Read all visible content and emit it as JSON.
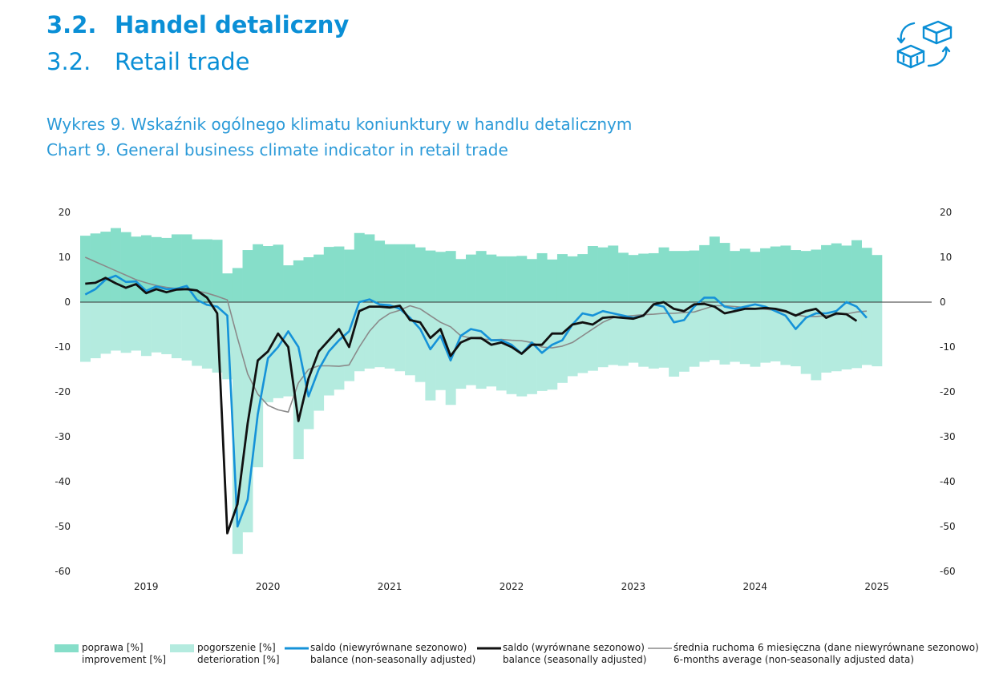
{
  "header": {
    "section_number": "3.2.",
    "title_pl": "Handel detaliczny",
    "title_en": "Retail trade",
    "icon": "boxes-exchange-icon"
  },
  "chart_title_pl": "Wykres 9. Wskaźnik ogólnego klimatu koniunktury w handlu detalicznym",
  "chart_title_en": "Chart 9. General business climate indicator in retail trade",
  "colors": {
    "improvement": "#86dec9",
    "deterioration": "#b4ebdf",
    "nsa": "#1592d8",
    "sa": "#111111",
    "avg": "#8a8a8a",
    "title": "#0a8fd6"
  },
  "legend": [
    {
      "key": "improvement",
      "pl": "poprawa [%]",
      "en": "improvement [%]"
    },
    {
      "key": "deterioration",
      "pl": "pogorszenie [%]",
      "en": "deterioration [%]"
    },
    {
      "key": "nsa",
      "pl": "saldo (niewyrównane sezonowo)",
      "en": "balance (non-seasonally adjusted)"
    },
    {
      "key": "sa",
      "pl": "saldo (wyrównane sezonowo)",
      "en": "balance (seasonally adjusted)"
    },
    {
      "key": "avg",
      "pl": "średnia ruchoma 6 miesięczna (dane niewyrównane sezonowo)",
      "en": "6-months average (non-seasonally adjusted data)"
    }
  ],
  "chart_data": {
    "type": "bar",
    "period": "monthly, 2018-07 to 2025-01",
    "x_tick_labels": [
      "2019",
      "2020",
      "2021",
      "2022",
      "2023",
      "2024",
      "2025"
    ],
    "y_ticks": [
      20,
      10,
      0,
      -10,
      -20,
      -30,
      -40,
      -50,
      -60
    ],
    "ylim": [
      -60,
      20
    ],
    "grid": false,
    "legend_position": "bottom",
    "series": [
      {
        "name": "poprawa [%] / improvement [%]",
        "type": "bar",
        "values": [
          14.8,
          15.3,
          15.7,
          16.5,
          15.6,
          14.6,
          14.9,
          14.5,
          14.3,
          15.1,
          15.1,
          14.0,
          14.0,
          13.9,
          6.4,
          7.6,
          11.6,
          12.9,
          12.5,
          12.8,
          8.2,
          9.3,
          10.0,
          10.6,
          12.3,
          12.4,
          11.7,
          15.4,
          15.1,
          13.7,
          12.9,
          12.9,
          12.9,
          12.2,
          11.5,
          11.2,
          11.4,
          9.6,
          10.6,
          11.4,
          10.6,
          10.2,
          10.2,
          10.3,
          9.6,
          10.9,
          9.5,
          10.7,
          10.2,
          10.7,
          12.5,
          12.2,
          12.6,
          11.0,
          10.5,
          10.8,
          10.9,
          12.2,
          11.4,
          11.4,
          11.5,
          12.7,
          14.6,
          13.2,
          11.4,
          11.9,
          11.2,
          12.0,
          12.4,
          12.6,
          11.6,
          11.4,
          11.7,
          12.7,
          13.1,
          12.6,
          13.8,
          12.1,
          10.5
        ]
      },
      {
        "name": "pogorszenie [%] / deterioration [%]",
        "type": "bar",
        "values": [
          -13.3,
          -12.5,
          -11.5,
          -10.8,
          -11.3,
          -10.8,
          -12.0,
          -11.2,
          -11.6,
          -12.5,
          -13.0,
          -14.2,
          -14.8,
          -15.7,
          -17.2,
          -56.1,
          -51.3,
          -36.8,
          -22.3,
          -21.4,
          -21.0,
          -35.0,
          -28.3,
          -24.2,
          -20.8,
          -19.5,
          -17.6,
          -15.4,
          -14.8,
          -14.5,
          -14.8,
          -15.4,
          -16.3,
          -17.8,
          -21.9,
          -19.6,
          -22.9,
          -19.3,
          -18.5,
          -19.3,
          -18.8,
          -19.7,
          -20.5,
          -21.0,
          -20.5,
          -19.8,
          -19.5,
          -18.0,
          -16.5,
          -15.8,
          -15.3,
          -14.5,
          -14.0,
          -14.2,
          -13.5,
          -14.4,
          -14.8,
          -14.6,
          -16.6,
          -15.5,
          -14.4,
          -13.3,
          -12.9,
          -13.9,
          -13.3,
          -13.8,
          -14.4,
          -13.5,
          -13.2,
          -14.0,
          -14.3,
          -16.0,
          -17.4,
          -15.7,
          -15.4,
          -15.0,
          -14.7,
          -14.0,
          -14.3
        ]
      },
      {
        "name": "saldo (niewyrównane sezonowo) / balance (non-seasonally adjusted)",
        "type": "line",
        "values": [
          1.7,
          2.9,
          5.0,
          5.9,
          4.5,
          4.6,
          2.5,
          3.5,
          2.9,
          3.0,
          3.6,
          0.5,
          -0.6,
          -1.0,
          -3.0,
          -50.0,
          -44.0,
          -25.0,
          -12.5,
          -10.0,
          -6.5,
          -10.0,
          -21.0,
          -15.0,
          -11.0,
          -8.5,
          -6.5,
          0.0,
          0.6,
          -0.5,
          -0.7,
          -1.5,
          -3.5,
          -6.0,
          -10.5,
          -7.5,
          -13.0,
          -7.5,
          -6.0,
          -6.5,
          -8.5,
          -8.5,
          -9.5,
          -11.5,
          -9.0,
          -11.3,
          -9.5,
          -8.5,
          -5.0,
          -2.5,
          -3.0,
          -2.0,
          -2.5,
          -3.0,
          -3.5,
          -3.0,
          -0.5,
          -1.0,
          -4.5,
          -4.0,
          -1.0,
          1.0,
          1.0,
          -1.0,
          -1.5,
          -1.0,
          -0.5,
          -1.0,
          -2.0,
          -3.0,
          -6.0,
          -3.5,
          -2.5,
          -2.5,
          -2.0,
          0.0,
          -1.0,
          -3.5
        ]
      },
      {
        "name": "saldo (wyrównane sezonowo) / balance (seasonally adjusted)",
        "type": "line",
        "values": [
          4.1,
          4.3,
          5.4,
          4.2,
          3.2,
          4.0,
          2.0,
          2.9,
          2.2,
          2.8,
          2.9,
          2.6,
          1.0,
          -2.5,
          -51.5,
          -45.0,
          -27.0,
          -13.0,
          -11.0,
          -7.0,
          -10.0,
          -26.5,
          -17.0,
          -11.0,
          -8.5,
          -6.0,
          -10.0,
          -2.0,
          -1.0,
          -1.0,
          -1.2,
          -0.8,
          -4.0,
          -4.5,
          -8.0,
          -6.0,
          -12.0,
          -9.0,
          -8.0,
          -8.0,
          -9.5,
          -9.0,
          -10.0,
          -11.5,
          -9.5,
          -9.5,
          -7.0,
          -7.0,
          -5.0,
          -4.5,
          -5.0,
          -3.5,
          -3.3,
          -3.5,
          -3.7,
          -3.0,
          -0.5,
          0.0,
          -1.5,
          -2.0,
          -0.5,
          -0.4,
          -1.0,
          -2.5,
          -2.0,
          -1.5,
          -1.5,
          -1.3,
          -1.5,
          -2.0,
          -3.0,
          -2.0,
          -1.5,
          -3.5,
          -2.5,
          -2.7,
          -4.2
        ]
      },
      {
        "name": "średnia ruchoma 6 miesięczna (dane niewyrównane sezonowo) / 6-months average (non-seasonally adjusted data)",
        "type": "line",
        "values": [
          10.0,
          9.0,
          8.0,
          7.0,
          6.0,
          5.0,
          4.3,
          3.7,
          3.3,
          3.0,
          2.8,
          2.5,
          2.0,
          1.3,
          0.5,
          -8.0,
          -16.0,
          -20.5,
          -23.0,
          -24.0,
          -24.5,
          -18.0,
          -15.0,
          -14.2,
          -14.2,
          -14.3,
          -14.0,
          -10.0,
          -6.5,
          -4.0,
          -2.5,
          -1.8,
          -0.8,
          -1.5,
          -3.0,
          -4.5,
          -5.5,
          -7.5,
          -8.0,
          -8.2,
          -8.4,
          -8.3,
          -8.5,
          -8.6,
          -9.0,
          -10.0,
          -10.2,
          -9.8,
          -9.0,
          -7.5,
          -6.0,
          -4.5,
          -3.5,
          -3.2,
          -3.0,
          -2.8,
          -2.7,
          -2.5,
          -2.5,
          -2.3,
          -2.2,
          -1.5,
          -0.8,
          -0.8,
          -1.0,
          -1.2,
          -1.4,
          -1.6,
          -1.8,
          -2.2,
          -2.8,
          -3.2,
          -3.2,
          -3.0,
          -2.8,
          -2.6,
          -2.2,
          -2.0
        ]
      }
    ]
  }
}
